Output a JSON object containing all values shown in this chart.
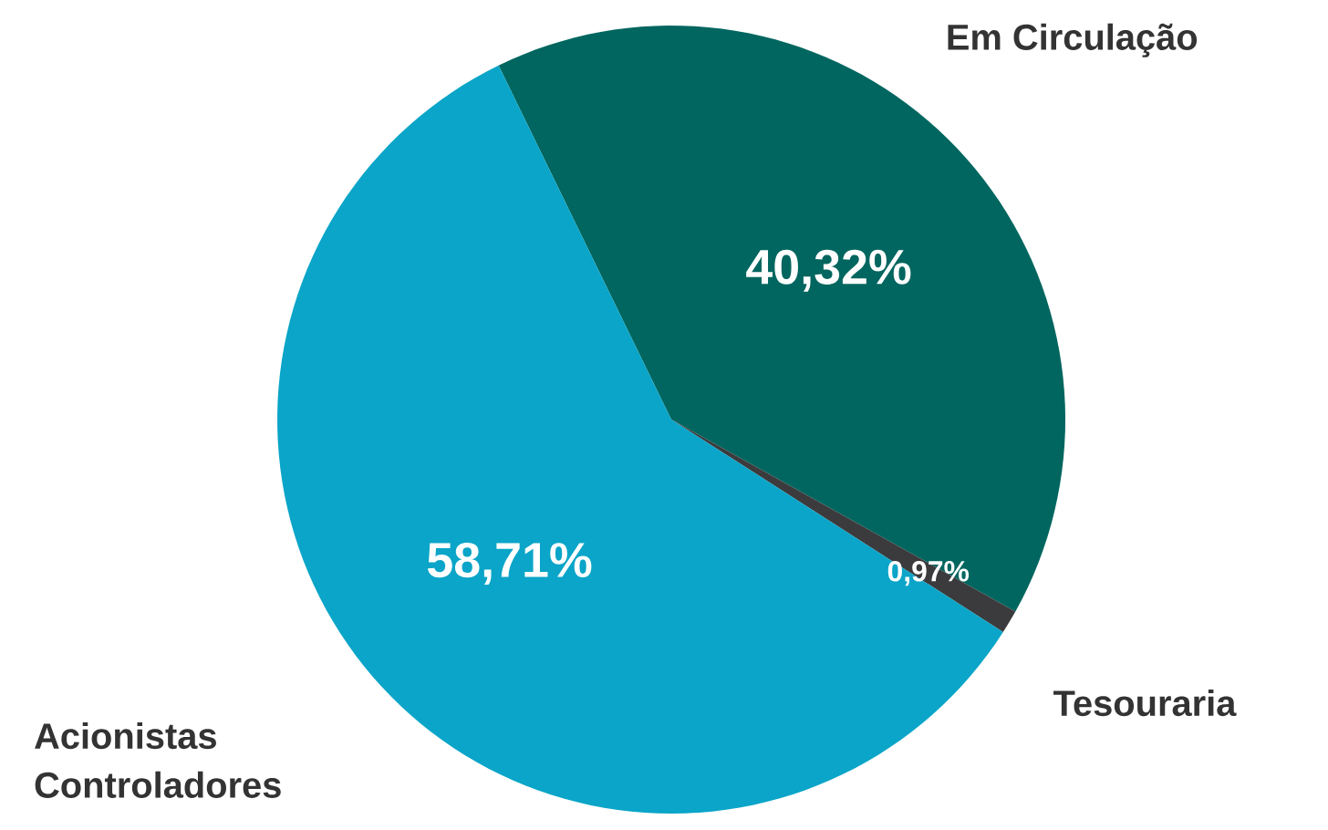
{
  "chart_data": {
    "type": "pie",
    "categories": [
      "Em Circulação",
      "Tesouraria",
      "Acionistas Controladores"
    ],
    "values": [
      40.32,
      0.97,
      58.71
    ],
    "colors": [
      "#00665f",
      "#3b3b3d",
      "#0aa5c8"
    ],
    "value_labels": [
      "40,32%",
      "0,97%",
      "58,71%"
    ]
  }
}
